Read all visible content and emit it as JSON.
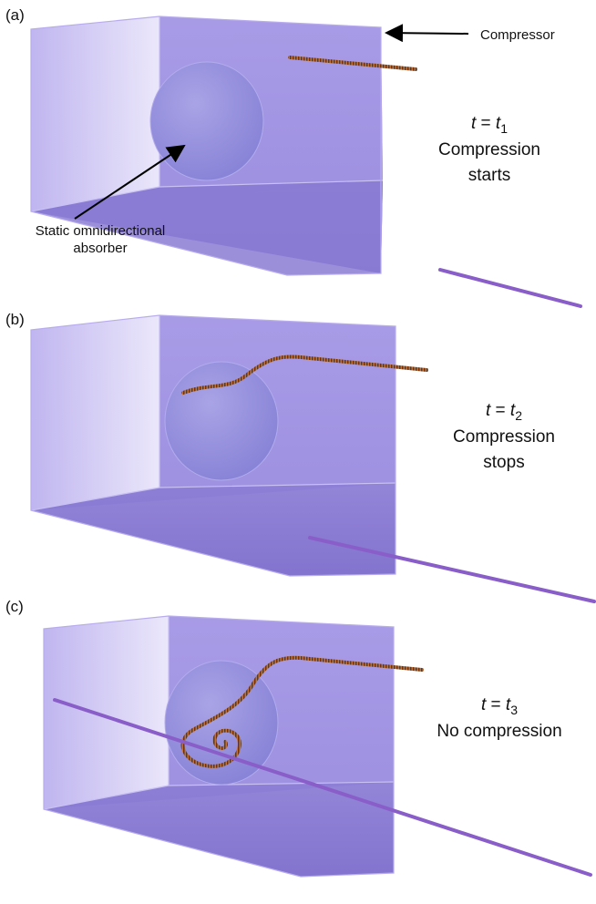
{
  "panels": [
    {
      "label": "(a)",
      "time_var": "t",
      "time_sub": "1",
      "caption_line1": "Compression",
      "caption_line2": "starts"
    },
    {
      "label": "(b)",
      "time_var": "t",
      "time_sub": "2",
      "caption_line1": "Compression",
      "caption_line2": "stops"
    },
    {
      "label": "(c)",
      "time_var": "t",
      "time_sub": "3",
      "caption_line1": "No compression",
      "caption_line2": ""
    }
  ],
  "annotations": {
    "compressor": "Compressor",
    "absorber_line1": "Static omnidirectional",
    "absorber_line2": "absorber"
  },
  "colors": {
    "box_fill": "#8e7fd6",
    "box_edge": "#b5a9ea",
    "sphere": "#8a86d8",
    "ray_orange": "#c2703a",
    "ray_purple": "#8a5ec8"
  }
}
